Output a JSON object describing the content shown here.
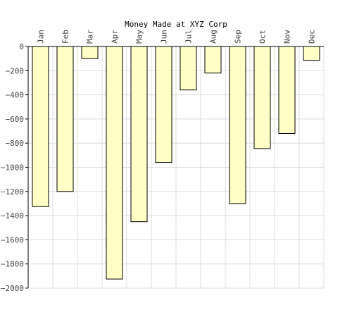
{
  "chart_data": {
    "type": "bar",
    "title": "Money Made at XYZ Corp",
    "xlabel": "",
    "ylabel": "",
    "categories": [
      "Jan",
      "Feb",
      "Mar",
      "Apr",
      "May",
      "Jun",
      "Jul",
      "Aug",
      "Sep",
      "Oct",
      "Nov",
      "Dec"
    ],
    "values": [
      -1325,
      -1200,
      -100,
      -1925,
      -1450,
      -960,
      -360,
      -220,
      -1300,
      -845,
      -720,
      -115
    ],
    "ylim": [
      -2000,
      0
    ],
    "yticks": [
      0,
      -200,
      -400,
      -600,
      -800,
      -1000,
      -1200,
      -1400,
      -1600,
      -1800,
      -2000
    ],
    "ytick_labels": [
      "0",
      "−200",
      "−400",
      "−600",
      "−800",
      "−1000",
      "−1200",
      "−1400",
      "−1600",
      "−1800",
      "−2000"
    ],
    "grid": true,
    "x_tick_position": "top",
    "colors": {
      "bar_fill": "#ffffc6",
      "bar_stroke": "#000000",
      "grid": "#dddddd",
      "axis": "#000000"
    }
  }
}
